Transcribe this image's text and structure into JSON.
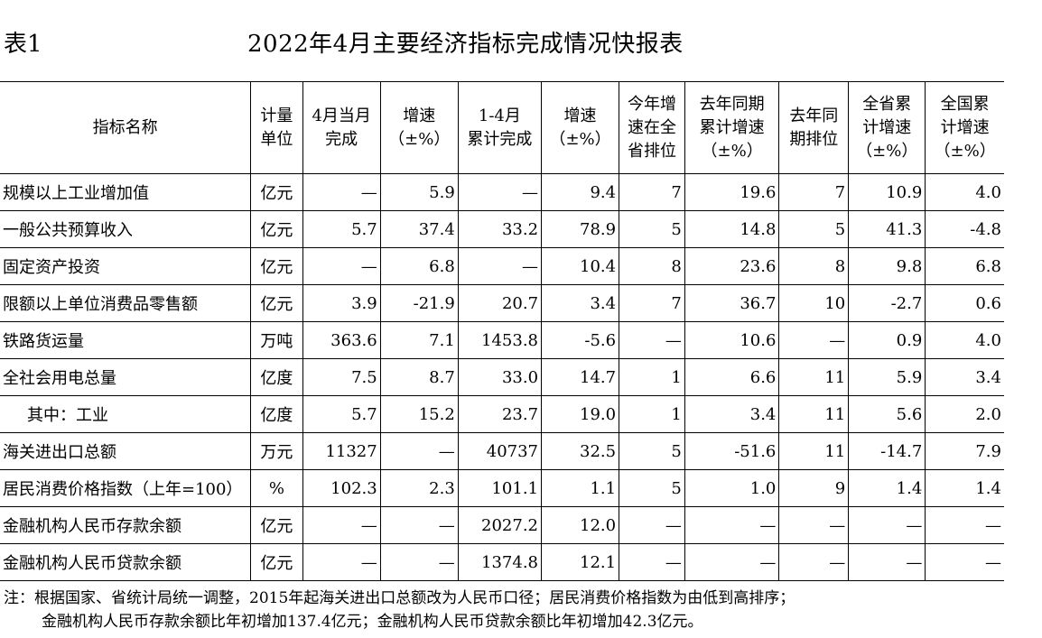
{
  "table_label": "表1",
  "title": "2022年4月主要经济指标完成情况快报表",
  "headers": [
    [
      "指标名称"
    ],
    [
      "计量",
      "单位"
    ],
    [
      "4月当月",
      "完成"
    ],
    [
      "增速",
      "（±%）"
    ],
    [
      "1-4月",
      "累计完成"
    ],
    [
      "增速",
      "（±%）"
    ],
    [
      "今年增",
      "速在全",
      "省排位"
    ],
    [
      "去年同期",
      "累计增速",
      "（±%）"
    ],
    [
      "去年同",
      "期排位"
    ],
    [
      "全省累",
      "计增速",
      "（±%）"
    ],
    [
      "全国累",
      "计增速",
      "（±%）"
    ]
  ],
  "rows": [
    {
      "name": "规模以上工业增加值",
      "indent": false,
      "cells": [
        "亿元",
        "—",
        "5.9",
        "—",
        "9.4",
        "7",
        "19.6",
        "7",
        "10.9",
        "4.0"
      ]
    },
    {
      "name": "一般公共预算收入",
      "indent": false,
      "cells": [
        "亿元",
        "5.7",
        "37.4",
        "33.2",
        "78.9",
        "5",
        "14.8",
        "5",
        "41.3",
        "-4.8"
      ]
    },
    {
      "name": "固定资产投资",
      "indent": false,
      "cells": [
        "亿元",
        "—",
        "6.8",
        "—",
        "10.4",
        "8",
        "23.6",
        "8",
        "9.8",
        "6.8"
      ]
    },
    {
      "name": "限额以上单位消费品零售额",
      "indent": false,
      "cells": [
        "亿元",
        "3.9",
        "-21.9",
        "20.7",
        "3.4",
        "7",
        "36.7",
        "10",
        "-2.7",
        "0.6"
      ]
    },
    {
      "name": "铁路货运量",
      "indent": false,
      "cells": [
        "万吨",
        "363.6",
        "7.1",
        "1453.8",
        "-5.6",
        "—",
        "10.6",
        "—",
        "0.9",
        "4.0"
      ]
    },
    {
      "name": "全社会用电总量",
      "indent": false,
      "cells": [
        "亿度",
        "7.5",
        "8.7",
        "33.0",
        "14.7",
        "1",
        "6.6",
        "11",
        "5.9",
        "3.4"
      ]
    },
    {
      "name": "其中：工业",
      "indent": true,
      "cells": [
        "亿度",
        "5.7",
        "15.2",
        "23.7",
        "19.0",
        "1",
        "3.4",
        "11",
        "5.6",
        "2.0"
      ]
    },
    {
      "name": "海关进出口总额",
      "indent": false,
      "cells": [
        "万元",
        "11327",
        "—",
        "40737",
        "32.5",
        "5",
        "-51.6",
        "11",
        "-14.7",
        "7.9"
      ]
    },
    {
      "name": "居民消费价格指数（上年=100）",
      "indent": false,
      "cells": [
        "%",
        "102.3",
        "2.3",
        "101.1",
        "1.1",
        "5",
        "1.0",
        "9",
        "1.4",
        "1.4"
      ]
    },
    {
      "name": "金融机构人民币存款余额",
      "indent": false,
      "cells": [
        "亿元",
        "—",
        "—",
        "2027.2",
        "12.0",
        "—",
        "—",
        "—",
        "—",
        "—"
      ]
    },
    {
      "name": "金融机构人民币贷款余额",
      "indent": false,
      "cells": [
        "亿元",
        "—",
        "—",
        "1374.8",
        "12.1",
        "—",
        "—",
        "—",
        "—",
        "—"
      ]
    }
  ],
  "notes": {
    "line1": "注：根据国家、省统计局统一调整，2015年起海关进出口总额改为人民币口径；居民消费价格指数为由低到高排序；",
    "line2": "金融机构人民币存款余额比年初增加137.4亿元；金融机构人民币贷款余额比年初增加42.3亿元。"
  }
}
